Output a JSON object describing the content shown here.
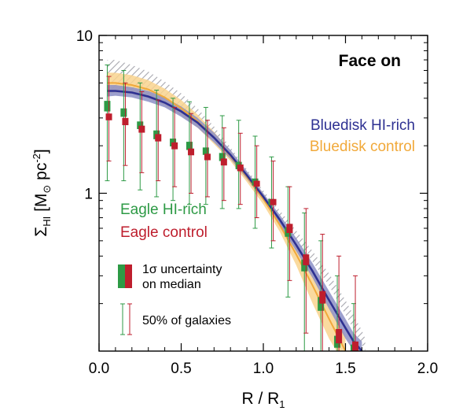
{
  "chart_data": {
    "type": "line",
    "title": "Face on",
    "xlabel": "R / R1",
    "ylabel": "ΣHI [M⊙ pc⁻²]",
    "xlim": [
      0.0,
      2.0
    ],
    "ylim": [
      0.1,
      10
    ],
    "y_scale": "log",
    "x_ticks": [
      "0.0",
      "0.5",
      "1.0",
      "1.5",
      "2.0"
    ],
    "y_ticks": [
      {
        "value": 1,
        "label": "1"
      },
      {
        "value": 10,
        "label": "10"
      }
    ],
    "series": [
      {
        "name": "Bluedisk HI-rich",
        "color": "#2e3192",
        "x": [
          0.05,
          0.1,
          0.2,
          0.3,
          0.4,
          0.5,
          0.6,
          0.7,
          0.8,
          0.9,
          1.0,
          1.1,
          1.2,
          1.3,
          1.4,
          1.5,
          1.55,
          1.6
        ],
        "y": [
          4.45,
          4.45,
          4.35,
          4.1,
          3.75,
          3.3,
          2.8,
          2.25,
          1.75,
          1.3,
          0.95,
          0.68,
          0.47,
          0.32,
          0.21,
          0.14,
          0.115,
          0.1
        ],
        "y_low": [
          4.1,
          4.15,
          4.05,
          3.8,
          3.5,
          3.05,
          2.6,
          2.1,
          1.65,
          1.23,
          0.9,
          0.63,
          0.43,
          0.29,
          0.185,
          0.12,
          0.1,
          0.09
        ],
        "y_high": [
          4.85,
          4.85,
          4.7,
          4.45,
          4.05,
          3.55,
          3.0,
          2.42,
          1.88,
          1.38,
          1.0,
          0.73,
          0.52,
          0.36,
          0.24,
          0.16,
          0.13,
          0.115
        ]
      },
      {
        "name": "Bluedisk control",
        "color": "#f1a93a",
        "x": [
          0.05,
          0.1,
          0.2,
          0.3,
          0.4,
          0.5,
          0.6,
          0.7,
          0.8,
          0.9,
          1.0,
          1.1,
          1.2,
          1.3,
          1.4,
          1.5
        ],
        "y": [
          5.0,
          5.0,
          4.85,
          4.55,
          4.05,
          3.45,
          2.85,
          2.25,
          1.72,
          1.27,
          0.92,
          0.63,
          0.41,
          0.26,
          0.16,
          0.1
        ],
        "y_low": [
          4.3,
          4.35,
          4.25,
          4.0,
          3.6,
          3.1,
          2.6,
          2.05,
          1.6,
          1.18,
          0.85,
          0.57,
          0.35,
          0.2,
          0.12,
          0.08
        ],
        "y_high": [
          5.8,
          5.8,
          5.6,
          5.2,
          4.6,
          3.9,
          3.15,
          2.45,
          1.85,
          1.36,
          1.0,
          0.7,
          0.47,
          0.31,
          0.2,
          0.125
        ]
      },
      {
        "name": "hatched band",
        "color": "#a7a7af",
        "x": [
          0.05,
          0.1,
          0.2,
          0.3,
          0.4,
          0.5,
          0.6,
          0.7,
          0.8,
          0.9,
          1.0,
          1.1,
          1.2,
          1.3,
          1.4,
          1.5,
          1.6,
          1.62
        ],
        "y_low": [
          4.5,
          4.6,
          4.5,
          4.2,
          3.8,
          3.3,
          2.75,
          2.2,
          1.7,
          1.28,
          0.94,
          0.69,
          0.5,
          0.37,
          0.26,
          0.17,
          0.11,
          0.1
        ],
        "y_high": [
          7.0,
          7.0,
          6.5,
          5.9,
          5.1,
          4.3,
          3.45,
          2.65,
          1.95,
          1.42,
          1.04,
          0.78,
          0.58,
          0.43,
          0.31,
          0.21,
          0.135,
          0.12
        ]
      },
      {
        "name": "Eagle HI-rich",
        "color": "#2d9a45",
        "x": [
          0.05,
          0.15,
          0.25,
          0.35,
          0.45,
          0.55,
          0.65,
          0.75,
          0.85,
          0.95,
          1.05,
          1.15,
          1.25,
          1.35,
          1.45,
          1.55
        ],
        "y": [
          3.55,
          3.25,
          2.7,
          2.35,
          2.1,
          2.0,
          1.85,
          1.7,
          1.5,
          1.18,
          0.88,
          0.57,
          0.35,
          0.2,
          0.115,
          0.1
        ],
        "box_low": [
          3.3,
          3.05,
          2.55,
          2.2,
          1.98,
          1.88,
          1.75,
          1.6,
          1.42,
          1.12,
          0.84,
          0.53,
          0.32,
          0.18,
          0.105,
          0.09
        ],
        "box_high": [
          3.85,
          3.45,
          2.85,
          2.5,
          2.22,
          2.12,
          1.95,
          1.8,
          1.58,
          1.24,
          0.92,
          0.61,
          0.38,
          0.22,
          0.125,
          0.11
        ],
        "err_low": [
          1.2,
          1.2,
          1.05,
          0.95,
          0.9,
          0.85,
          0.85,
          0.8,
          0.8,
          0.6,
          0.45,
          0.22,
          0.1,
          0.1,
          0.1,
          0.1
        ],
        "err_high": [
          6.5,
          6.0,
          5.0,
          4.5,
          4.0,
          3.8,
          3.5,
          3.1,
          2.9,
          2.3,
          1.7,
          1.1,
          0.75,
          0.5,
          0.3,
          0.2
        ]
      },
      {
        "name": "Eagle control",
        "color": "#be1e2d",
        "x": [
          0.06,
          0.16,
          0.26,
          0.36,
          0.46,
          0.56,
          0.66,
          0.76,
          0.86,
          0.96,
          1.06,
          1.16,
          1.26,
          1.36,
          1.46,
          1.56
        ],
        "y": [
          3.05,
          2.85,
          2.55,
          2.25,
          2.0,
          1.83,
          1.7,
          1.58,
          1.45,
          1.15,
          0.88,
          0.6,
          0.38,
          0.22,
          0.125,
          0.105
        ],
        "box_low": [
          2.9,
          2.7,
          2.42,
          2.13,
          1.9,
          1.74,
          1.62,
          1.5,
          1.38,
          1.1,
          0.84,
          0.56,
          0.35,
          0.2,
          0.112,
          0.095
        ],
        "box_high": [
          3.2,
          3.0,
          2.68,
          2.37,
          2.1,
          1.92,
          1.78,
          1.66,
          1.52,
          1.2,
          0.92,
          0.64,
          0.41,
          0.24,
          0.138,
          0.115
        ],
        "err_low": [
          1.6,
          1.5,
          1.35,
          1.2,
          1.1,
          1.0,
          0.95,
          0.9,
          0.85,
          0.7,
          0.5,
          0.28,
          0.13,
          0.1,
          0.1,
          0.1
        ],
        "err_high": [
          5.5,
          5.0,
          4.4,
          3.9,
          3.5,
          3.2,
          2.9,
          2.6,
          2.4,
          2.0,
          1.6,
          1.1,
          0.8,
          0.55,
          0.4,
          0.3
        ]
      }
    ],
    "legend": {
      "bluedisk_rich": "Bluedisk HI-rich",
      "bluedisk_control": "Bluedisk control",
      "eagle_rich": "Eagle HI-rich",
      "eagle_control": "Eagle control",
      "uncertainty_line1": "1σ uncertainty",
      "uncertainty_line2": "on median",
      "spread": "50% of galaxies"
    },
    "colors": {
      "blue": "#2e3192",
      "blue_band": "#8c8fc6",
      "orange": "#f1a93a",
      "orange_band": "#f9d48e",
      "green": "#2d9a45",
      "red": "#be1e2d",
      "hatch": "#a7a7af"
    }
  }
}
